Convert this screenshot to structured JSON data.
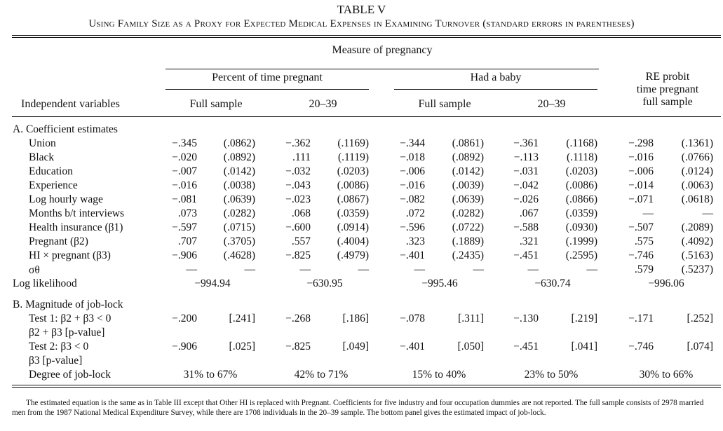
{
  "table": {
    "title": "TABLE V",
    "subtitle": "Using Family Size as a Proxy for Expected Medical Expenses in Examining Turnover (standard errors in parentheses)",
    "measure_header": "Measure of pregnancy",
    "group_percent": "Percent of time pregnant",
    "group_baby": "Had a baby",
    "re_probit": [
      "RE probit",
      "time pregnant",
      "full sample"
    ],
    "indep_header": "Independent variables",
    "sub_full": "Full sample",
    "sub_2039": "20–39",
    "section_a": "A.  Coefficient estimates",
    "section_b": "B.  Magnitude of job-lock",
    "rows": [
      {
        "label": "Union",
        "v": [
          "−.345",
          "(.0862)",
          "−.362",
          "(.1169)",
          "−.344",
          "(.0861)",
          "−.361",
          "(.1168)",
          "−.298",
          "(.1361)"
        ]
      },
      {
        "label": "Black",
        "v": [
          "−.020",
          "(.0892)",
          ".111",
          "(.1119)",
          "−.018",
          "(.0892)",
          "−.113",
          "(.1118)",
          "−.016",
          "(.0766)"
        ]
      },
      {
        "label": "Education",
        "v": [
          "−.007",
          "(.0142)",
          "−.032",
          "(.0203)",
          "−.006",
          "(.0142)",
          "−.031",
          "(.0203)",
          "−.006",
          "(.0124)"
        ]
      },
      {
        "label": "Experience",
        "v": [
          "−.016",
          "(.0038)",
          "−.043",
          "(.0086)",
          "−.016",
          "(.0039)",
          "−.042",
          "(.0086)",
          "−.014",
          "(.0063)"
        ]
      },
      {
        "label": "Log hourly wage",
        "v": [
          "−.081",
          "(.0639)",
          "−.023",
          "(.0867)",
          "−.082",
          "(.0639)",
          "−.026",
          "(.0866)",
          "−.071",
          "(.0618)"
        ]
      },
      {
        "label": "Months b/t interviews",
        "v": [
          ".073",
          "(.0282)",
          ".068",
          "(.0359)",
          ".072",
          "(.0282)",
          ".067",
          "(.0359)",
          "—",
          "—"
        ]
      },
      {
        "label": "Health insurance (β1)",
        "v": [
          "−.597",
          "(.0715)",
          "−.600",
          "(.0914)",
          "−.596",
          "(.0722)",
          "−.588",
          "(.0930)",
          "−.507",
          "(.2089)"
        ]
      },
      {
        "label": "Pregnant (β2)",
        "v": [
          ".707",
          "(.3705)",
          ".557",
          "(.4004)",
          ".323",
          "(.1889)",
          ".321",
          "(.1999)",
          ".575",
          "(.4092)"
        ]
      },
      {
        "label": "HI × pregnant (β3)",
        "v": [
          "−.906",
          "(.4628)",
          "−.825",
          "(.4979)",
          "−.401",
          "(.2435)",
          "−.451",
          "(.2595)",
          "−.746",
          "(.5163)"
        ]
      },
      {
        "label": "σθ",
        "v": [
          "—",
          "—",
          "—",
          "—",
          "—",
          "—",
          "—",
          "—",
          ".579",
          "(.5237)"
        ]
      }
    ],
    "loglik": {
      "label": "Log likelihood",
      "v": [
        "−994.94",
        "−630.95",
        "−995.46",
        "−630.74",
        "−996.06"
      ]
    },
    "test1": {
      "label": "Test 1: β2 + β3 < 0",
      "label2": "β2 + β3 [p-value]",
      "v": [
        "−.200",
        "[.241]",
        "−.268",
        "[.186]",
        "−.078",
        "[.311]",
        "−.130",
        "[.219]",
        "−.171",
        "[.252]"
      ]
    },
    "test2": {
      "label": "Test 2: β3 < 0",
      "label2": "β3 [p-value]",
      "v": [
        "−.906",
        "[.025]",
        "−.825",
        "[.049]",
        "−.401",
        "[.050]",
        "−.451",
        "[.041]",
        "−.746",
        "[.074]"
      ]
    },
    "degree": {
      "label": "Degree of job-lock",
      "v": [
        "31% to 67%",
        "42% to 71%",
        "15% to 40%",
        "23% to 50%",
        "30% to 66%"
      ]
    },
    "note": "The estimated equation is the same as in Table III except that Other HI is replaced with Pregnant. Coefficients for five industry and four occupation dummies are not reported. The full sample consists of 2978 married men from the 1987 National Medical Expenditure Survey, while there are 1708 individuals in the 20–39 sample. The bottom panel gives the estimated impact of job-lock."
  }
}
